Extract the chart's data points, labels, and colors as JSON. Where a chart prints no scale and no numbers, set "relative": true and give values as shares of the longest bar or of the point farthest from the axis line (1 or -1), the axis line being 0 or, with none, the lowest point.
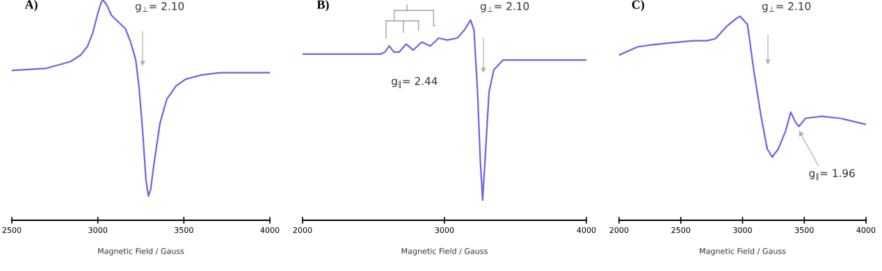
{
  "chart_data": [
    {
      "type": "line",
      "title": "A)",
      "xlabel": "Magnetic Field / Gauss",
      "relative": true,
      "tick_labels": "x",
      "xlim": [
        2500,
        4000
      ],
      "xticks": [
        2500,
        3000,
        3500,
        4000
      ],
      "x": [
        2500,
        2700,
        2840,
        2900,
        2940,
        2970,
        3000,
        3020,
        3030,
        3050,
        3080,
        3120,
        3160,
        3190,
        3220,
        3240,
        3260,
        3280,
        3294,
        3307,
        3327,
        3361,
        3401,
        3455,
        3509,
        3603,
        3711,
        3845,
        4000
      ],
      "series": [
        {
          "color": "#6a63e8",
          "values": [
            0.68,
            0.69,
            0.72,
            0.75,
            0.79,
            0.85,
            0.94,
            0.99,
            1.0,
            0.98,
            0.93,
            0.9,
            0.87,
            0.81,
            0.73,
            0.6,
            0.41,
            0.18,
            0.11,
            0.14,
            0.26,
            0.44,
            0.55,
            0.61,
            0.64,
            0.66,
            0.67,
            0.67,
            0.67
          ]
        }
      ],
      "annotations": [
        "g$_{⊥}$= 2.10"
      ]
    },
    {
      "type": "line",
      "title": "B)",
      "xlabel": "Magnetic Field / Gauss",
      "relative": true,
      "tick_labels": "x",
      "xlim": [
        2000,
        4000
      ],
      "xticks": [
        2000,
        3000,
        4000
      ],
      "x": [
        2000,
        2550,
        2580,
        2610,
        2645,
        2680,
        2730,
        2780,
        2840,
        2900,
        2960,
        3020,
        3090,
        3140,
        3184,
        3208,
        3233,
        3253,
        3269,
        3290,
        3314,
        3347,
        3412,
        3494,
        3722,
        4000
      ],
      "series": [
        {
          "color": "#6a63e8",
          "values": [
            0.83,
            0.83,
            0.84,
            0.87,
            0.84,
            0.84,
            0.88,
            0.85,
            0.89,
            0.87,
            0.91,
            0.9,
            0.91,
            0.95,
            1.0,
            0.95,
            0.64,
            0.29,
            0.1,
            0.35,
            0.64,
            0.75,
            0.8,
            0.8,
            0.8,
            0.8
          ]
        }
      ],
      "annotations": [
        "g$_{⊥}$= 2.10",
        {
          "text": "g$_{∥}$= 2.44",
          "x": 2760,
          "y": 0.86
        }
      ]
    },
    {
      "type": "line",
      "title": "C)",
      "xlabel": "Magnetic Field / Gauss",
      "relative": true,
      "tick_labels": "x",
      "xlim": [
        2000,
        4000
      ],
      "xticks": [
        2000,
        2500,
        3000,
        3500,
        4000
      ],
      "x": [
        2000,
        2150,
        2260,
        2420,
        2600,
        2710,
        2780,
        2870,
        2950,
        2980,
        3040,
        3090,
        3150,
        3200,
        3240,
        3290,
        3350,
        3390,
        3430,
        3457,
        3510,
        3640,
        3790,
        3860,
        3930,
        4000
      ],
      "series": [
        {
          "color": "#6a63e8",
          "values": [
            0.81,
            0.85,
            0.86,
            0.87,
            0.88,
            0.88,
            0.89,
            0.95,
            0.99,
            1.0,
            0.96,
            0.74,
            0.51,
            0.35,
            0.31,
            0.35,
            0.44,
            0.53,
            0.48,
            0.46,
            0.5,
            0.51,
            0.5,
            0.49,
            0.48,
            0.47
          ]
        }
      ],
      "annotations": [
        "g$_{⊥}$= 2.10",
        {
          "text": "g$_{∥}$= 1.96",
          "x": 3457,
          "y": 0.44
        }
      ]
    }
  ]
}
